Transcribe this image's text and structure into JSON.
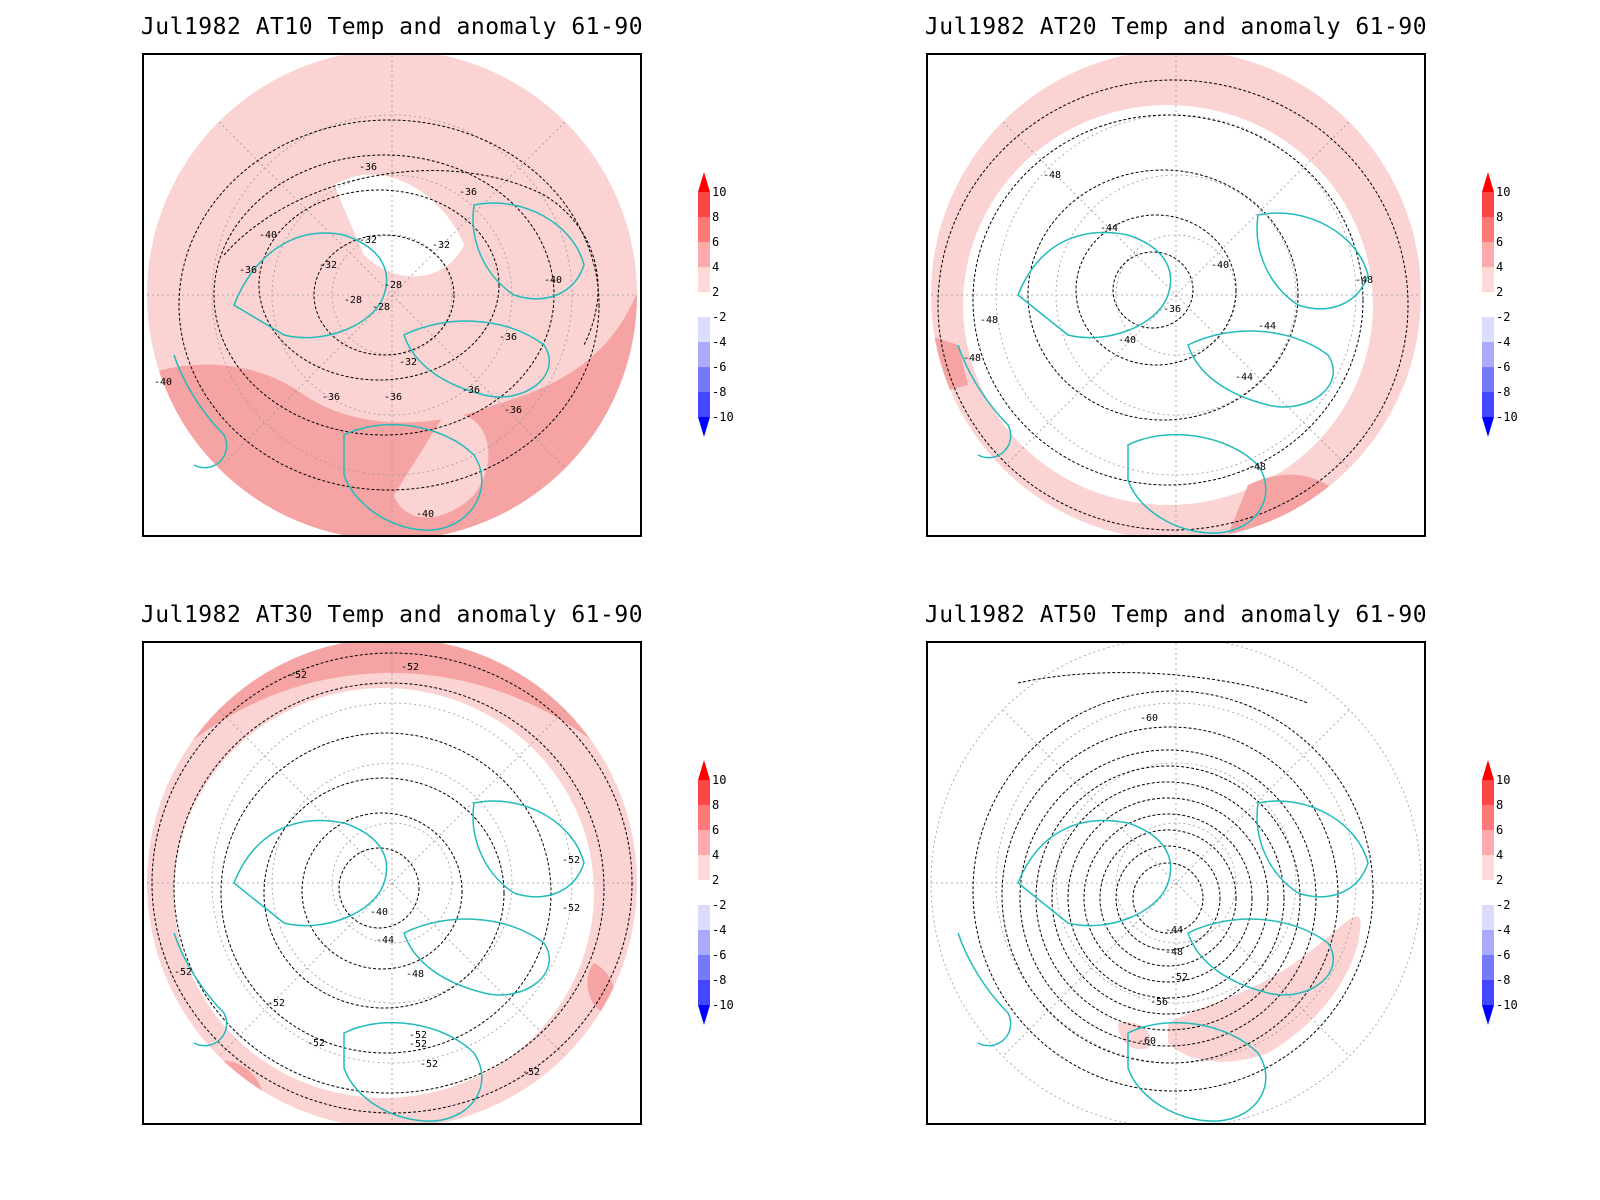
{
  "panels": [
    {
      "title": "Jul1982 AT10 Temp and anomaly 61-90",
      "labels": [
        "-36",
        "-36",
        "-40",
        "-32",
        "-32",
        "-32",
        "-28",
        "-28",
        "-28",
        "-36",
        "-32",
        "-40",
        "-36",
        "-36",
        "-36",
        "-36",
        "-36",
        "-40",
        "-40"
      ],
      "anomaly_fill": "mostly +2 to +6 (pink), large +4 to +6 band over Atlantic/Africa"
    },
    {
      "title": "Jul1982 AT20 Temp and anomaly 61-90",
      "labels": [
        "-48",
        "-44",
        "-40",
        "-36",
        "-40",
        "-44",
        "-44",
        "-48",
        "-48",
        "-48",
        "-48"
      ],
      "anomaly_fill": "+2 to +4 ring around outer latitudes"
    },
    {
      "title": "Jul1982 AT30 Temp and anomaly 61-90",
      "labels": [
        "-52",
        "-52",
        "-40",
        "-44",
        "-48",
        "-52",
        "-52",
        "-52",
        "-52",
        "-52",
        "-52",
        "-52",
        "-52",
        "-52"
      ],
      "anomaly_fill": "+2 to +4 outer ring with +4 to +6 patches"
    },
    {
      "title": "Jul1982 AT50 Temp and anomaly 61-90",
      "labels": [
        "-60",
        "-44",
        "-48",
        "-52",
        "-56",
        "-60"
      ],
      "anomaly_fill": "weak +2 to +4 patches over Africa/Middle East"
    }
  ],
  "colorbar": {
    "ticks": [
      "10",
      "8",
      "6",
      "4",
      "2",
      "-2",
      "-4",
      "-6",
      "-8",
      "-10"
    ],
    "colors": [
      "#ff0000",
      "#ff4646",
      "#ff7878",
      "#ffaaaa",
      "#ffd8d8",
      "#ffffff",
      "#dcdcff",
      "#aaaaff",
      "#7878ff",
      "#4646ff",
      "#0000ff"
    ]
  },
  "colors": {
    "coast": "#22bbbb",
    "anomaly_2_4": "#fbd3d3",
    "anomaly_4_6": "#f5a3a3",
    "contour": "#000000",
    "grid": "#999999"
  }
}
